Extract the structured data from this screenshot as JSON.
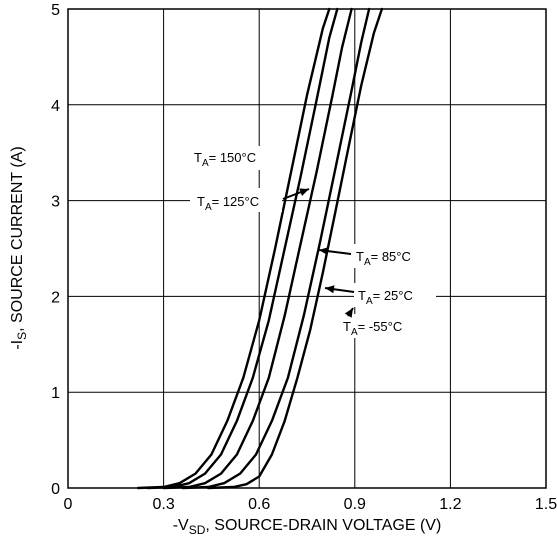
{
  "chart_data": {
    "type": "line",
    "xlabel": {
      "prefix": "-V",
      "sub": "SD",
      "suffix": ", SOURCE-DRAIN VOLTAGE (V)"
    },
    "ylabel": {
      "prefix": "-I",
      "sub": "S",
      "suffix": ", SOURCE CURRENT (A)"
    },
    "xlim": [
      0,
      1.5
    ],
    "ylim": [
      0,
      5
    ],
    "x_ticks": [
      0,
      0.3,
      0.6,
      0.9,
      1.2,
      1.5
    ],
    "x_tick_labels": [
      "0",
      "0.3",
      "0.6",
      "0.9",
      "1.2",
      "1.5"
    ],
    "y_ticks": [
      0,
      1,
      2,
      3,
      4,
      5
    ],
    "y_tick_labels": [
      "0",
      "1",
      "2",
      "3",
      "4",
      "5"
    ],
    "grid": true,
    "series": [
      {
        "name": "T_A = 150°C",
        "label_main": "T",
        "label_sub": "A",
        "label_rest": "= 150°C",
        "points": [
          [
            0.22,
            0.0
          ],
          [
            0.3,
            0.01
          ],
          [
            0.35,
            0.05
          ],
          [
            0.4,
            0.15
          ],
          [
            0.45,
            0.35
          ],
          [
            0.5,
            0.7
          ],
          [
            0.55,
            1.15
          ],
          [
            0.6,
            1.75
          ],
          [
            0.65,
            2.5
          ],
          [
            0.7,
            3.3
          ],
          [
            0.75,
            4.1
          ],
          [
            0.8,
            4.8
          ],
          [
            0.82,
            5.0
          ]
        ]
      },
      {
        "name": "T_A = 125°C",
        "label_main": "T",
        "label_sub": "A",
        "label_rest": "= 125°C",
        "points": [
          [
            0.25,
            0.0
          ],
          [
            0.33,
            0.01
          ],
          [
            0.38,
            0.05
          ],
          [
            0.43,
            0.15
          ],
          [
            0.48,
            0.35
          ],
          [
            0.53,
            0.7
          ],
          [
            0.58,
            1.15
          ],
          [
            0.63,
            1.75
          ],
          [
            0.68,
            2.5
          ],
          [
            0.73,
            3.25
          ],
          [
            0.78,
            4.05
          ],
          [
            0.82,
            4.7
          ],
          [
            0.845,
            5.0
          ]
        ]
      },
      {
        "name": "T_A = 85°C",
        "label_main": "T",
        "label_sub": "A",
        "label_rest": "= 85°C",
        "points": [
          [
            0.3,
            0.0
          ],
          [
            0.38,
            0.01
          ],
          [
            0.43,
            0.05
          ],
          [
            0.48,
            0.15
          ],
          [
            0.53,
            0.35
          ],
          [
            0.58,
            0.7
          ],
          [
            0.63,
            1.15
          ],
          [
            0.68,
            1.8
          ],
          [
            0.73,
            2.55
          ],
          [
            0.78,
            3.3
          ],
          [
            0.83,
            4.1
          ],
          [
            0.86,
            4.6
          ],
          [
            0.89,
            5.0
          ]
        ]
      },
      {
        "name": "T_A = 25°C",
        "label_main": "T",
        "label_sub": "A",
        "label_rest": "= 25°C",
        "points": [
          [
            0.36,
            0.0
          ],
          [
            0.44,
            0.01
          ],
          [
            0.49,
            0.05
          ],
          [
            0.54,
            0.15
          ],
          [
            0.59,
            0.35
          ],
          [
            0.64,
            0.7
          ],
          [
            0.69,
            1.15
          ],
          [
            0.74,
            1.8
          ],
          [
            0.79,
            2.55
          ],
          [
            0.84,
            3.35
          ],
          [
            0.89,
            4.15
          ],
          [
            0.92,
            4.65
          ],
          [
            0.945,
            5.0
          ]
        ]
      },
      {
        "name": "T_A = -55°C",
        "label_main": "T",
        "label_sub": "A",
        "label_rest": "= -55°C",
        "points": [
          [
            0.44,
            0.0
          ],
          [
            0.52,
            0.01
          ],
          [
            0.56,
            0.04
          ],
          [
            0.6,
            0.12
          ],
          [
            0.64,
            0.35
          ],
          [
            0.68,
            0.7
          ],
          [
            0.72,
            1.15
          ],
          [
            0.76,
            1.65
          ],
          [
            0.8,
            2.25
          ],
          [
            0.84,
            2.9
          ],
          [
            0.88,
            3.55
          ],
          [
            0.92,
            4.2
          ],
          [
            0.96,
            4.75
          ],
          [
            0.985,
            5.0
          ]
        ]
      }
    ]
  }
}
